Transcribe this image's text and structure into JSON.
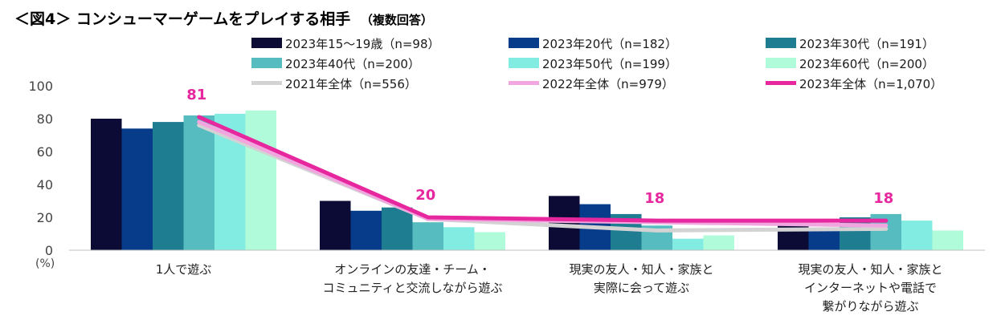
{
  "title": {
    "main": "＜図4＞ コンシューマーゲームをプレイする相手",
    "sub": "（複数回答）"
  },
  "chart_data": {
    "type": "bar",
    "categories": [
      [
        "1人で遊ぶ"
      ],
      [
        "オンラインの友達・チーム・",
        "コミュニティと交流しながら遊ぶ"
      ],
      [
        "現実の友人・知人・家族と",
        "実際に会って遊ぶ"
      ],
      [
        "現実の友人・知人・家族と",
        "インターネットや電話で",
        "繋がりながら遊ぶ"
      ]
    ],
    "series": [
      {
        "name": "2023年15～19歳（n=98）",
        "color": "#0b0b36",
        "values": [
          80,
          30,
          33,
          15
        ]
      },
      {
        "name": "2023年20代（n=182）",
        "color": "#063c8a",
        "values": [
          74,
          24,
          28,
          13
        ]
      },
      {
        "name": "2023年30代（n=191）",
        "color": "#1f7d92",
        "values": [
          78,
          26,
          22,
          20
        ]
      },
      {
        "name": "2023年40代（n=200）",
        "color": "#56bcc0",
        "values": [
          82,
          17,
          15,
          22
        ]
      },
      {
        "name": "2023年50代（n=199）",
        "color": "#83ece2",
        "values": [
          83,
          14,
          7,
          18
        ]
      },
      {
        "name": "2023年60代（n=200）",
        "color": "#b0fbd9",
        "values": [
          85,
          11,
          9,
          12
        ]
      }
    ],
    "lines": [
      {
        "name": "2021年全体（n=556）",
        "color": "#d3d3d3",
        "values": [
          76,
          19,
          12,
          13
        ]
      },
      {
        "name": "2022年全体（n=979）",
        "color": "#f2a6df",
        "values": [
          78,
          19,
          17,
          15
        ]
      },
      {
        "name": "2023年全体（n=1,070）",
        "color": "#e6279e",
        "values": [
          81,
          20,
          18,
          18
        ]
      }
    ],
    "data_labels": [
      "81",
      "20",
      "18",
      "18"
    ],
    "ylim": [
      0,
      100
    ],
    "yticks": [
      "0",
      "20",
      "40",
      "60",
      "80",
      "100"
    ],
    "ylabel": "(%)",
    "grid": false,
    "legend_position": "top"
  }
}
